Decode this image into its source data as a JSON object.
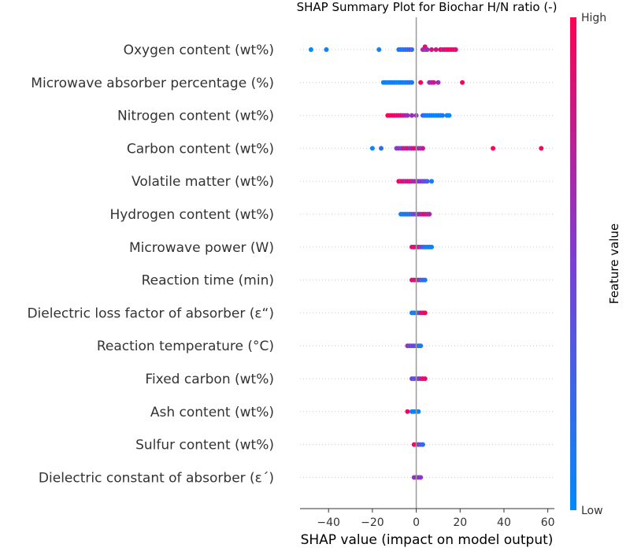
{
  "chart_data": {
    "type": "scatter",
    "title": "SHAP Summary Plot for Biochar H/N ratio (-)",
    "xlabel": "SHAP value (impact on model output)",
    "xlim": [
      -53,
      63
    ],
    "xticks": [
      -40,
      -20,
      0,
      20,
      40,
      60
    ],
    "xtick_labels": [
      "−40",
      "−20",
      "0",
      "20",
      "40",
      "60"
    ],
    "colorbar": {
      "label": "Feature value",
      "high": "High",
      "low": "Low",
      "low_color": "#008afb",
      "high_color": "#ff0052"
    },
    "features": [
      {
        "name": "Oxygen content (wt%)",
        "points": [
          {
            "x": -48,
            "f": 0.0
          },
          {
            "x": -41,
            "f": 0.05
          },
          {
            "x": -17,
            "f": 0.05
          },
          {
            "x": -8,
            "f": 0.1
          },
          {
            "x": -7,
            "f": 0.2
          },
          {
            "x": -6,
            "f": 0.05
          },
          {
            "x": -5,
            "f": 0.3
          },
          {
            "x": -4,
            "f": 0.1
          },
          {
            "x": -3,
            "f": 0.4
          },
          {
            "x": -2,
            "f": 0.2
          },
          {
            "x": 3,
            "f": 0.75
          },
          {
            "x": 4,
            "f": 0.55
          },
          {
            "x": 4,
            "f": 0.9
          },
          {
            "x": 5,
            "f": 0.6
          },
          {
            "x": 7,
            "f": 0.85
          },
          {
            "x": 9,
            "f": 0.8
          },
          {
            "x": 11,
            "f": 0.95
          },
          {
            "x": 12,
            "f": 0.7
          },
          {
            "x": 13,
            "f": 0.9
          },
          {
            "x": 14,
            "f": 0.85
          },
          {
            "x": 15,
            "f": 1.0
          },
          {
            "x": 16,
            "f": 0.9
          },
          {
            "x": 17,
            "f": 0.95
          },
          {
            "x": 18,
            "f": 0.85
          }
        ]
      },
      {
        "name": "Microwave absorber percentage (%)",
        "points": [
          {
            "x": -15,
            "f": 0.05
          },
          {
            "x": -14,
            "f": 0.1
          },
          {
            "x": -13,
            "f": 0.0
          },
          {
            "x": -12,
            "f": 0.1
          },
          {
            "x": -11,
            "f": 0.05
          },
          {
            "x": -10,
            "f": 0.1
          },
          {
            "x": -9,
            "f": 0.05
          },
          {
            "x": -8,
            "f": 0.0
          },
          {
            "x": -7,
            "f": 0.1
          },
          {
            "x": -6,
            "f": 0.1
          },
          {
            "x": -5,
            "f": 0.05
          },
          {
            "x": -4,
            "f": 0.1
          },
          {
            "x": -3,
            "f": 0.2
          },
          {
            "x": -2,
            "f": 0.1
          },
          {
            "x": 2,
            "f": 0.95
          },
          {
            "x": 6,
            "f": 0.6
          },
          {
            "x": 7,
            "f": 0.7
          },
          {
            "x": 8,
            "f": 0.8
          },
          {
            "x": 10,
            "f": 0.6
          },
          {
            "x": 21,
            "f": 0.95
          }
        ]
      },
      {
        "name": "Nitrogen content (wt%)",
        "points": [
          {
            "x": -13,
            "f": 1.0
          },
          {
            "x": -12,
            "f": 0.95
          },
          {
            "x": -11,
            "f": 0.9
          },
          {
            "x": -10,
            "f": 0.95
          },
          {
            "x": -9,
            "f": 0.85
          },
          {
            "x": -8,
            "f": 0.9
          },
          {
            "x": -7,
            "f": 0.85
          },
          {
            "x": -6,
            "f": 0.8
          },
          {
            "x": -5,
            "f": 0.7
          },
          {
            "x": -4,
            "f": 0.6
          },
          {
            "x": -2,
            "f": 0.65
          },
          {
            "x": 0,
            "f": 0.55
          },
          {
            "x": 3,
            "f": 0.25
          },
          {
            "x": 4,
            "f": 0.15
          },
          {
            "x": 5,
            "f": 0.1
          },
          {
            "x": 6,
            "f": 0.05
          },
          {
            "x": 7,
            "f": 0.1
          },
          {
            "x": 8,
            "f": 0.05
          },
          {
            "x": 9,
            "f": 0.0
          },
          {
            "x": 10,
            "f": 0.1
          },
          {
            "x": 11,
            "f": 0.05
          },
          {
            "x": 12,
            "f": 0.1
          },
          {
            "x": 14,
            "f": 0.05
          },
          {
            "x": 15,
            "f": 0.0
          }
        ]
      },
      {
        "name": "Carbon content (wt%)",
        "points": [
          {
            "x": -20,
            "f": 0.05
          },
          {
            "x": -16,
            "f": 0.2
          },
          {
            "x": -9,
            "f": 0.5
          },
          {
            "x": -8,
            "f": 0.6
          },
          {
            "x": -7,
            "f": 0.4
          },
          {
            "x": -6,
            "f": 0.8
          },
          {
            "x": -5,
            "f": 0.7
          },
          {
            "x": -4,
            "f": 0.9
          },
          {
            "x": -3,
            "f": 0.6
          },
          {
            "x": -2,
            "f": 0.8
          },
          {
            "x": -1,
            "f": 0.85
          },
          {
            "x": 0,
            "f": 0.9
          },
          {
            "x": 1,
            "f": 0.7
          },
          {
            "x": 2,
            "f": 0.6
          },
          {
            "x": 3,
            "f": 0.8
          },
          {
            "x": 35,
            "f": 1.0
          },
          {
            "x": 57,
            "f": 0.95
          }
        ]
      },
      {
        "name": "Volatile matter (wt%)",
        "points": [
          {
            "x": -8,
            "f": 1.0
          },
          {
            "x": -7,
            "f": 0.8
          },
          {
            "x": -6,
            "f": 0.9
          },
          {
            "x": -5,
            "f": 0.7
          },
          {
            "x": -4,
            "f": 0.85
          },
          {
            "x": -3,
            "f": 0.9
          },
          {
            "x": -2,
            "f": 0.7
          },
          {
            "x": -1,
            "f": 0.6
          },
          {
            "x": 0,
            "f": 0.75
          },
          {
            "x": 1,
            "f": 0.5
          },
          {
            "x": 2,
            "f": 0.6
          },
          {
            "x": 3,
            "f": 0.45
          },
          {
            "x": 4,
            "f": 0.4
          },
          {
            "x": 5,
            "f": 0.3
          },
          {
            "x": 7,
            "f": 0.1
          }
        ]
      },
      {
        "name": "Hydrogen content (wt%)",
        "points": [
          {
            "x": -7,
            "f": 0.1
          },
          {
            "x": -6,
            "f": 0.05
          },
          {
            "x": -5,
            "f": 0.2
          },
          {
            "x": -4,
            "f": 0.1
          },
          {
            "x": -3,
            "f": 0.15
          },
          {
            "x": -2,
            "f": 0.3
          },
          {
            "x": -1,
            "f": 0.4
          },
          {
            "x": 0,
            "f": 0.5
          },
          {
            "x": 1,
            "f": 0.6
          },
          {
            "x": 2,
            "f": 0.7
          },
          {
            "x": 3,
            "f": 0.8
          },
          {
            "x": 4,
            "f": 0.9
          },
          {
            "x": 5,
            "f": 0.75
          },
          {
            "x": 6,
            "f": 0.7
          }
        ]
      },
      {
        "name": "Microwave power (W)",
        "points": [
          {
            "x": -2,
            "f": 0.9
          },
          {
            "x": -1,
            "f": 0.85
          },
          {
            "x": 0,
            "f": 0.9
          },
          {
            "x": 1,
            "f": 0.8
          },
          {
            "x": 2,
            "f": 0.5
          },
          {
            "x": 3,
            "f": 0.3
          },
          {
            "x": 4,
            "f": 0.1
          },
          {
            "x": 5,
            "f": 0.05
          },
          {
            "x": 6,
            "f": 0.1
          },
          {
            "x": 7,
            "f": 0.05
          }
        ]
      },
      {
        "name": "Reaction time (min)",
        "points": [
          {
            "x": -2,
            "f": 0.9
          },
          {
            "x": -1,
            "f": 0.8
          },
          {
            "x": 0,
            "f": 0.85
          },
          {
            "x": 1,
            "f": 0.7
          },
          {
            "x": 2,
            "f": 0.3
          },
          {
            "x": 3,
            "f": 0.2
          },
          {
            "x": 4,
            "f": 0.1
          }
        ]
      },
      {
        "name": "Dielectric loss factor of absorber (ε“)",
        "points": [
          {
            "x": -2,
            "f": 0.1
          },
          {
            "x": -1,
            "f": 0.05
          },
          {
            "x": 0,
            "f": 0.1
          },
          {
            "x": 1,
            "f": 0.2
          },
          {
            "x": 2,
            "f": 0.9
          },
          {
            "x": 3,
            "f": 0.85
          },
          {
            "x": 4,
            "f": 1.0
          }
        ]
      },
      {
        "name": "Reaction temperature (°C)",
        "points": [
          {
            "x": -4,
            "f": 0.6
          },
          {
            "x": -3,
            "f": 0.5
          },
          {
            "x": -2,
            "f": 0.4
          },
          {
            "x": -1,
            "f": 0.5
          },
          {
            "x": 0,
            "f": 0.3
          },
          {
            "x": 1,
            "f": 0.2
          },
          {
            "x": 2,
            "f": 0.1
          }
        ]
      },
      {
        "name": "Fixed carbon (wt%)",
        "points": [
          {
            "x": -2,
            "f": 0.5
          },
          {
            "x": -1,
            "f": 0.3
          },
          {
            "x": 0,
            "f": 0.4
          },
          {
            "x": 1,
            "f": 0.5
          },
          {
            "x": 2,
            "f": 0.7
          },
          {
            "x": 3,
            "f": 0.9
          },
          {
            "x": 4,
            "f": 0.95
          }
        ]
      },
      {
        "name": "Ash content (wt%)",
        "points": [
          {
            "x": -4,
            "f": 0.95
          },
          {
            "x": -2,
            "f": 0.1
          },
          {
            "x": -1,
            "f": 0.05
          },
          {
            "x": 0,
            "f": 0.1
          },
          {
            "x": 1,
            "f": 0.05
          }
        ]
      },
      {
        "name": "Sulfur content (wt%)",
        "points": [
          {
            "x": -1,
            "f": 0.95
          },
          {
            "x": 0,
            "f": 0.9
          },
          {
            "x": 1,
            "f": 0.6
          },
          {
            "x": 2,
            "f": 0.3
          },
          {
            "x": 3,
            "f": 0.2
          }
        ]
      },
      {
        "name": "Dielectric constant of absorber (ε´)",
        "points": [
          {
            "x": -1,
            "f": 0.5
          },
          {
            "x": 0,
            "f": 0.7
          },
          {
            "x": 1,
            "f": 0.6
          },
          {
            "x": 2,
            "f": 0.55
          }
        ]
      }
    ]
  }
}
